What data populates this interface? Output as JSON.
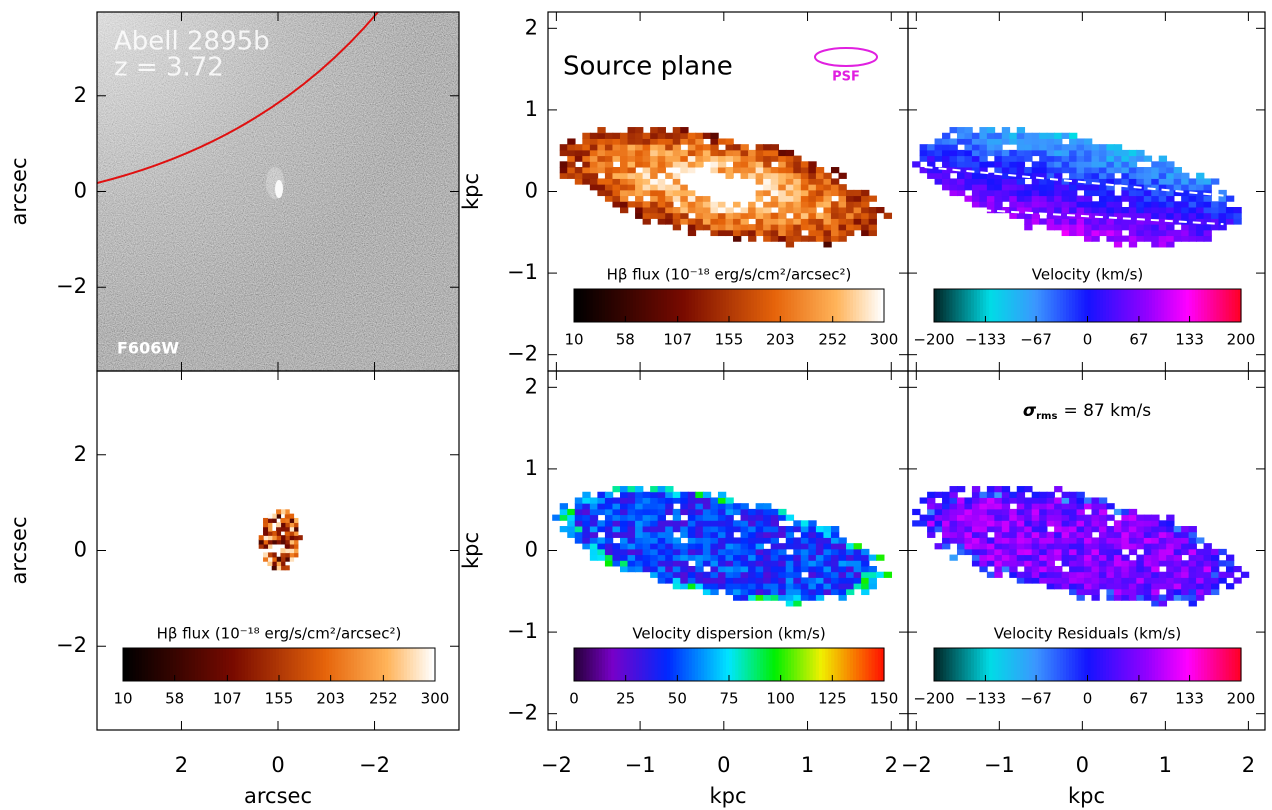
{
  "left_axes": {
    "xlabel": "arcsec",
    "ylabel": "arcsec",
    "xlim": [
      3.75,
      -3.75
    ],
    "ylim": [
      -3.75,
      3.75
    ],
    "xticks": [
      2,
      0,
      {
        "value": -2,
        "label": "−2"
      }
    ],
    "yticks": [
      2,
      0,
      {
        "value": -2,
        "label": "−2"
      }
    ]
  },
  "kpc_axes": {
    "xlabel": "kpc",
    "ylabel": "kpc",
    "xlim": [
      -2.1,
      2.2
    ],
    "ylim": [
      -2.2,
      2.2
    ],
    "xticks": [
      {
        "value": -2,
        "label": "−2"
      },
      {
        "value": -1,
        "label": "−1"
      },
      0,
      1,
      2
    ],
    "yticks": [
      2,
      1,
      0,
      {
        "value": -1,
        "label": "−1"
      },
      {
        "value": -2,
        "label": "−2"
      }
    ]
  },
  "image_panel": {
    "title": "Abell 2895b",
    "redshift": "z = 3.72",
    "filter": "F606W"
  },
  "maps": [
    {
      "colorbar_label": "Hβ flux (10⁻¹⁸ erg/s/cm²/arcsec²)",
      "colorbar_ticks": [
        10,
        58,
        107,
        155,
        203,
        252,
        300
      ]
    },
    {
      "title": "Source plane",
      "psf_label": "PSF",
      "colorbar_label": "Hβ flux (10⁻¹⁸ erg/s/cm²/arcsec²)",
      "colorbar_ticks": [
        10,
        58,
        107,
        155,
        203,
        252,
        300
      ]
    },
    {
      "colorbar_label": "Velocity (km/s)",
      "colorbar_ticks": [
        {
          "value": -200,
          "label": "−200"
        },
        {
          "value": -133,
          "label": "−133"
        },
        {
          "value": -67,
          "label": "−67"
        },
        0,
        67,
        133,
        200
      ]
    },
    {
      "colorbar_label": "Velocity dispersion (km/s)",
      "colorbar_ticks": [
        0,
        25,
        50,
        75,
        100,
        125,
        150
      ]
    },
    {
      "colorbar_label": "Velocity Residuals (km/s)",
      "colorbar_ticks": [
        {
          "value": -200,
          "label": "−200"
        },
        {
          "value": -133,
          "label": "−133"
        },
        {
          "value": -67,
          "label": "−67"
        },
        0,
        67,
        133,
        200
      ],
      "annotation": {
        "symbol": "σ",
        "subscript": "rms",
        "text": "= 87 km/s"
      }
    }
  ]
}
